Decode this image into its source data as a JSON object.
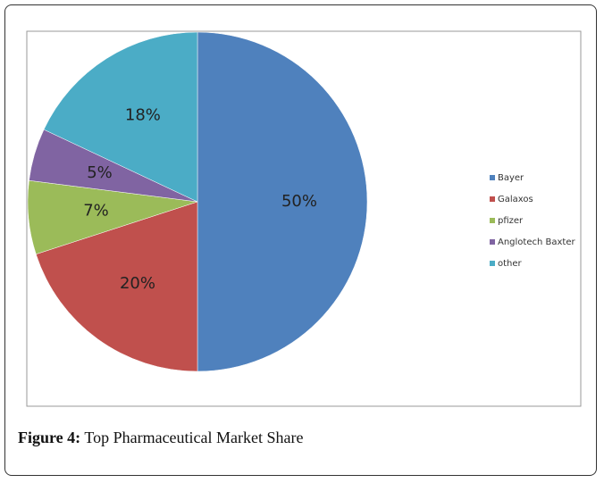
{
  "chart_data": {
    "type": "pie",
    "categories": [
      "Bayer",
      "Galaxos",
      "pfizer",
      "Anglotech Baxter",
      "other"
    ],
    "values": [
      50,
      20,
      7,
      5,
      18
    ],
    "value_labels": [
      "50%",
      "20%",
      "7%",
      "5%",
      "18%"
    ],
    "colors": [
      "#4f81bd",
      "#c0504d",
      "#9bbb59",
      "#8064a2",
      "#4bacc6"
    ],
    "legend": "right"
  },
  "caption": {
    "label": "Figure 4:",
    "text": "Top Pharmaceutical Market Share"
  }
}
